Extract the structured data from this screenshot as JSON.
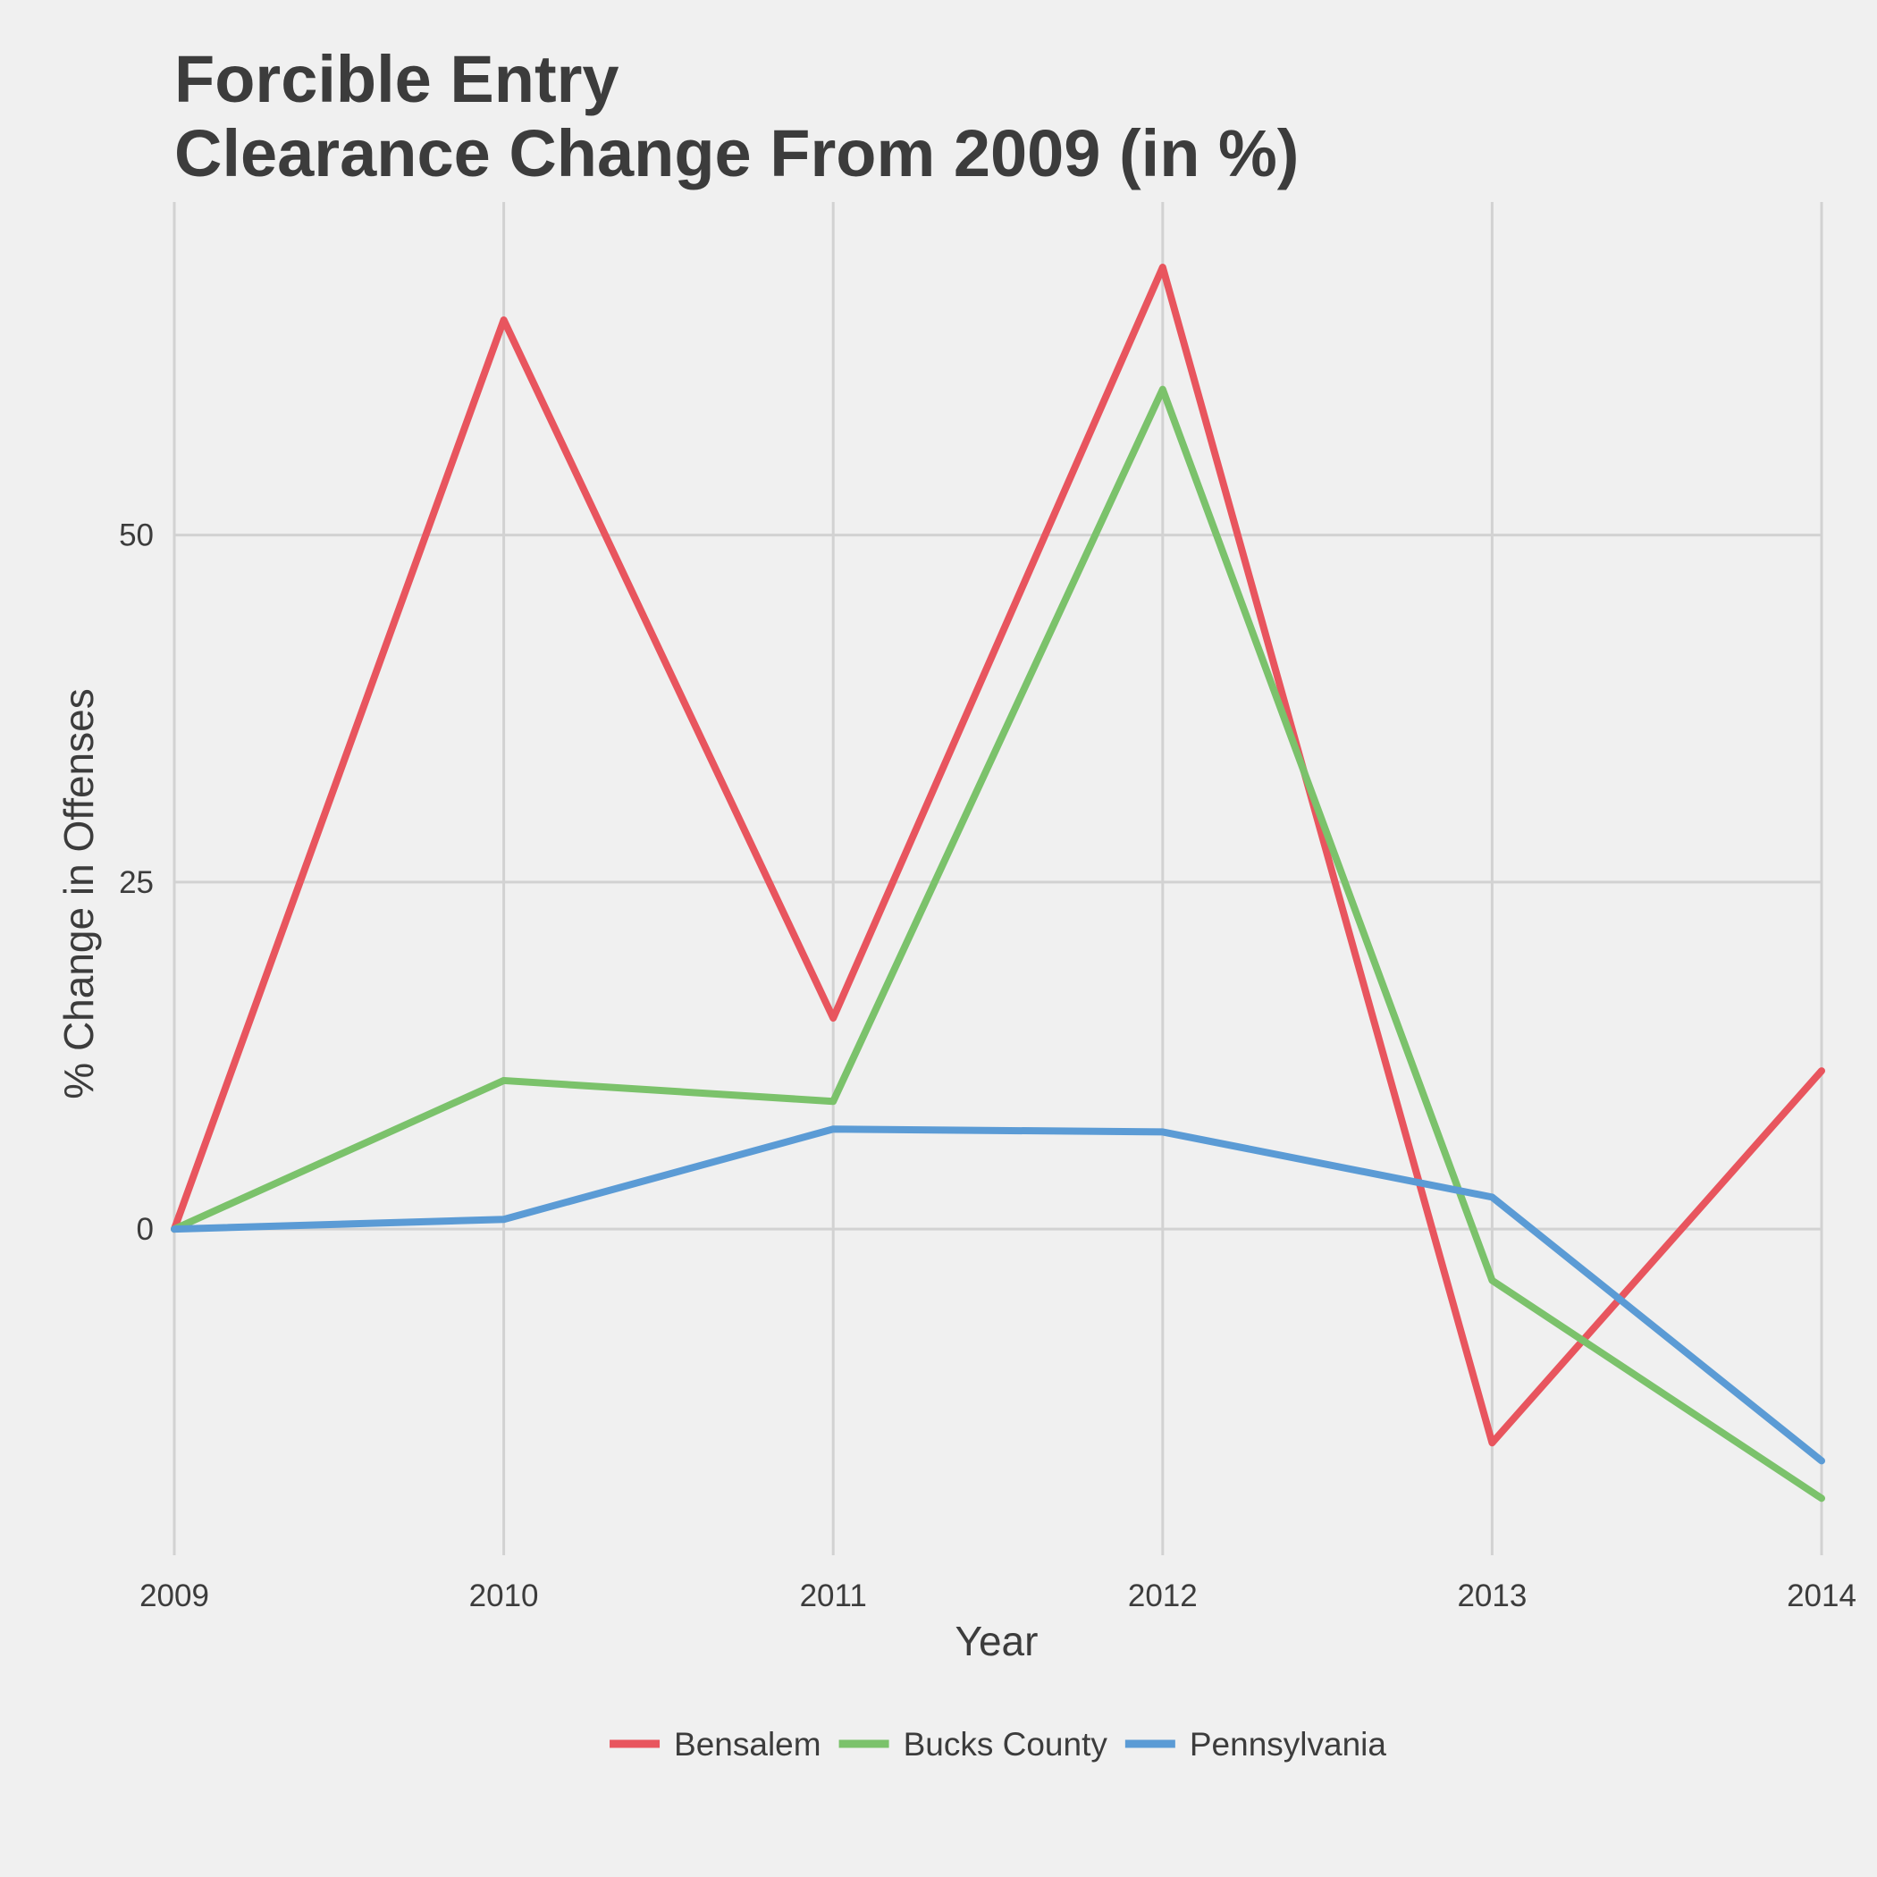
{
  "chart_data": {
    "type": "line",
    "title_lines": [
      "Forcible Entry",
      "Clearance Change From 2009 (in %)"
    ],
    "xlabel": "Year",
    "ylabel": "% Change in Offenses",
    "x": [
      2009,
      2010,
      2011,
      2012,
      2013,
      2014
    ],
    "xlim": [
      2009,
      2014
    ],
    "ylim": [
      -23.5,
      74
    ],
    "yticks": [
      0,
      25,
      50
    ],
    "grid": true,
    "legend_position": "bottom",
    "series": [
      {
        "name": "Bensalem",
        "color": "#e8555e",
        "values": [
          0,
          65.5,
          15.2,
          69.3,
          -15.4,
          11.4
        ]
      },
      {
        "name": "Bucks County",
        "color": "#7bc26b",
        "values": [
          0,
          10.7,
          9.2,
          60.5,
          -3.7,
          -19.4
        ]
      },
      {
        "name": "Pennsylvania",
        "color": "#5b9bd5",
        "values": [
          0,
          0.7,
          7.2,
          7.0,
          2.3,
          -16.7
        ]
      }
    ]
  }
}
